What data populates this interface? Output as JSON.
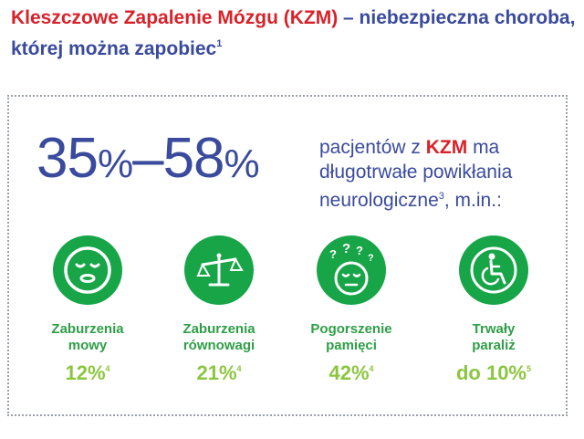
{
  "headline": {
    "part1": "Kleszczowe Zapalenie Mózgu (KZM)",
    "part2": " – niebezpieczna choroba, której można zapobiec",
    "ref": "1"
  },
  "stat": {
    "from": "35",
    "from_pct": "%",
    "dash": "–",
    "to": "58",
    "to_pct": "%"
  },
  "description": {
    "pre": "pacjentów z ",
    "highlight": "KZM",
    "post": " ma długotrwałe powikłania neurologiczne",
    "ref": "3",
    "tail": ", m.in.:"
  },
  "items": [
    {
      "label_line1": "Zaburzenia",
      "label_line2": "mowy",
      "value": "12%",
      "ref": "4",
      "icon": "speech-face-icon"
    },
    {
      "label_line1": "Zaburzenia",
      "label_line2": "równowagi",
      "value": "21%",
      "ref": "4",
      "icon": "balance-scale-icon"
    },
    {
      "label_line1": "Pogorszenie",
      "label_line2": "pamięci",
      "value": "42%",
      "ref": "4",
      "icon": "confused-head-icon"
    },
    {
      "label_line1": "Trwały",
      "label_line2": "paraliż",
      "value": "do 10%",
      "ref": "5",
      "icon": "wheelchair-icon"
    }
  ],
  "colors": {
    "red": "#d8222a",
    "navy": "#3a4a9c",
    "green": "#17a548",
    "light_green": "#8cc63f"
  }
}
